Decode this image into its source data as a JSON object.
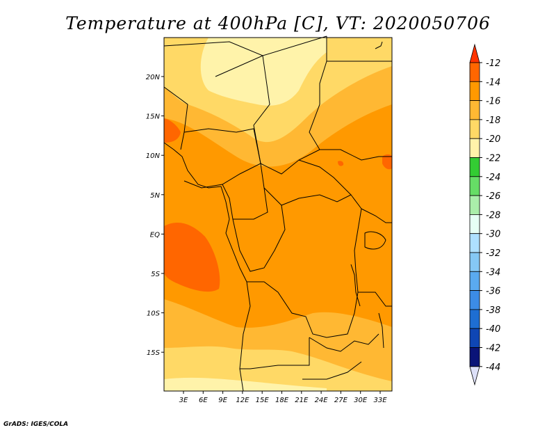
{
  "title": "Temperature at 400hPa [C], VT: 2020050706",
  "credit": "GrADS: IGES/COLA",
  "map": {
    "lon_labels": [
      "3E",
      "6E",
      "9E",
      "12E",
      "15E",
      "18E",
      "21E",
      "24E",
      "27E",
      "30E",
      "33E"
    ],
    "lat_labels": [
      "20N",
      "15N",
      "10N",
      "5N",
      "EQ",
      "5S",
      "10S",
      "15S"
    ],
    "field_colors": {
      "c14": "#ff6600",
      "c16": "#ff9900",
      "c18": "#ffb833",
      "c20": "#ffd966",
      "c22": "#fff3aa"
    }
  },
  "colorbar": {
    "levels": [
      "-12",
      "-14",
      "-16",
      "-18",
      "-20",
      "-22",
      "-24",
      "-26",
      "-28",
      "-30",
      "-32",
      "-34",
      "-36",
      "-38",
      "-40",
      "-42",
      "-44"
    ],
    "colors": [
      "#ff3300",
      "#ff6600",
      "#ff9900",
      "#ffb833",
      "#ffd966",
      "#fff3aa",
      "#33cc33",
      "#66dd66",
      "#aaeeaa",
      "#e6fff5",
      "#aee0ff",
      "#85c8f5",
      "#5aaaf0",
      "#3c8ce6",
      "#1e6ed2",
      "#0f46b4",
      "#0a1478",
      "#dde0f8"
    ]
  }
}
